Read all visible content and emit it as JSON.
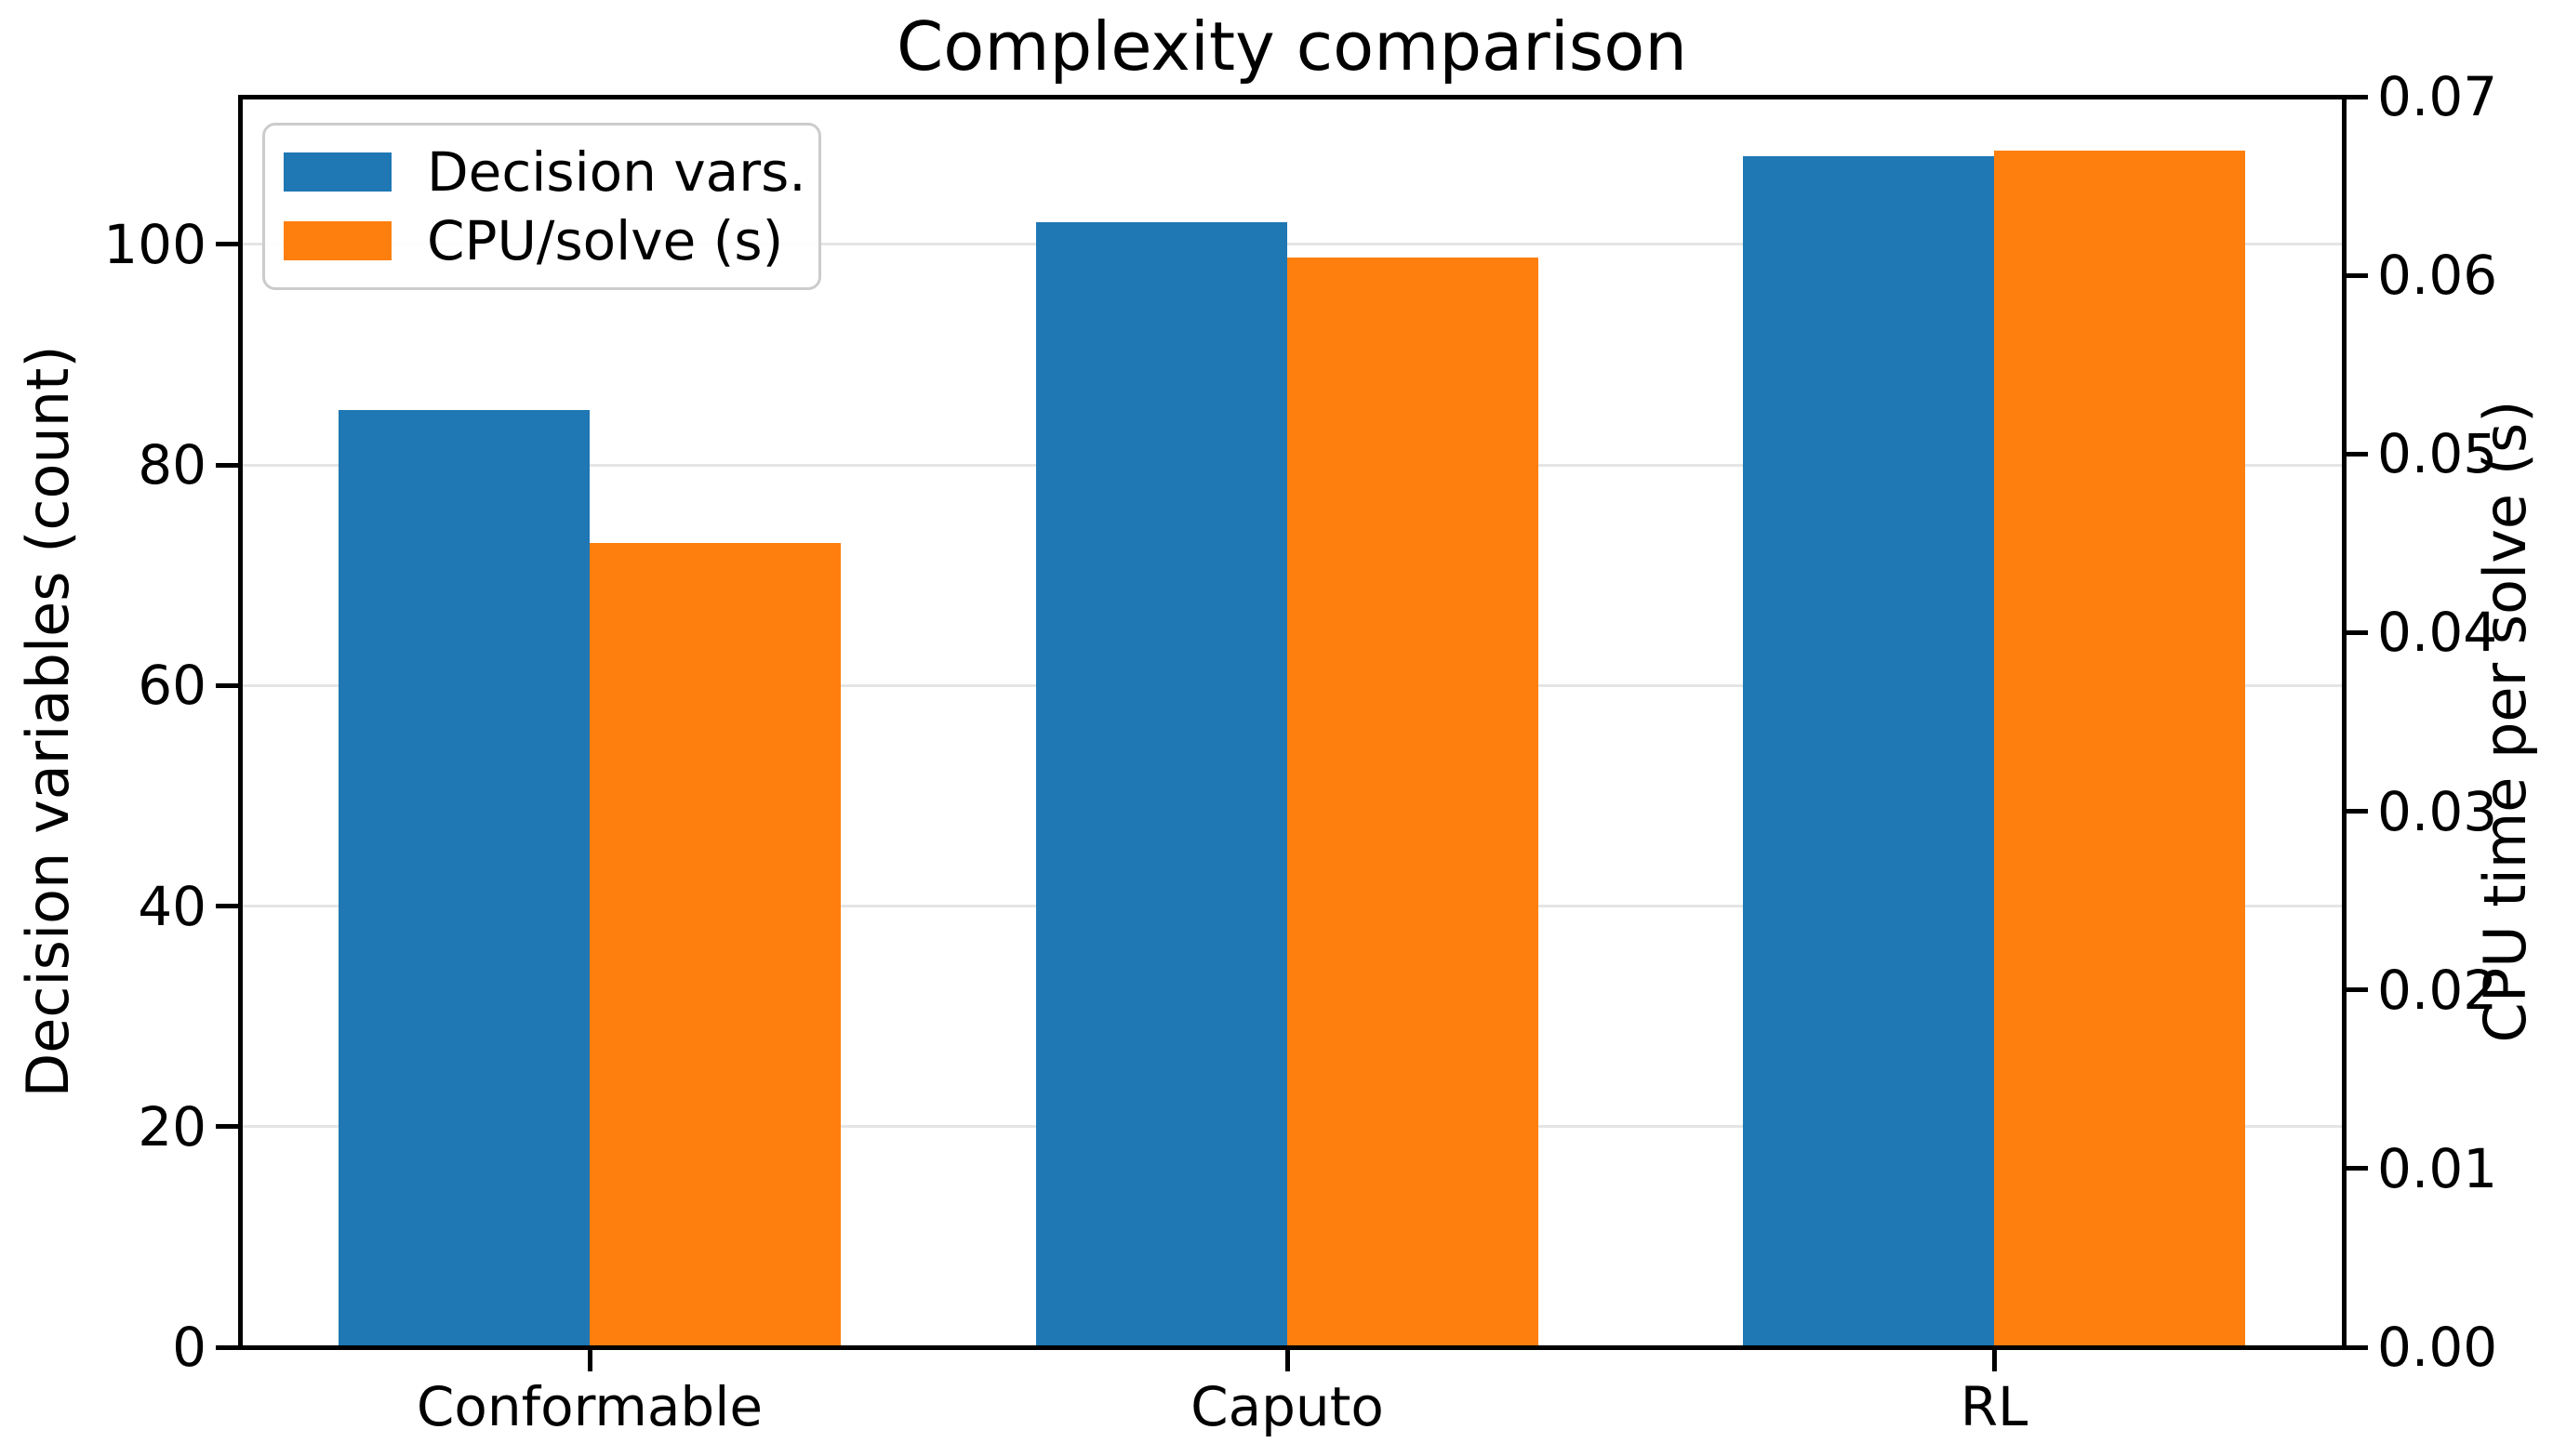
{
  "chart_data": {
    "type": "bar",
    "title": "Complexity comparison",
    "categories": [
      "Conformable",
      "Caputo",
      "RL"
    ],
    "series": [
      {
        "name": "Decision vars.",
        "axis": "left",
        "color": "#1f77b4",
        "values": [
          85,
          102,
          108
        ]
      },
      {
        "name": "CPU/solve (s)",
        "axis": "right",
        "color": "#ff7f0e",
        "values": [
          0.045,
          0.061,
          0.067
        ]
      }
    ],
    "left_axis": {
      "label": "Decision variables (count)",
      "tick_values": [
        0,
        20,
        40,
        60,
        80,
        100
      ],
      "tick_labels": [
        "0",
        "20",
        "40",
        "60",
        "80",
        "100"
      ],
      "range": [
        0,
        113.4
      ],
      "grid_tick_values": [
        20,
        40,
        60,
        80,
        100
      ]
    },
    "right_axis": {
      "label": "CPU time per solve (s)",
      "tick_values": [
        0.0,
        0.01,
        0.02,
        0.03,
        0.04,
        0.05,
        0.06,
        0.07
      ],
      "tick_labels": [
        "0.00",
        "0.01",
        "0.02",
        "0.03",
        "0.04",
        "0.05",
        "0.06",
        "0.07"
      ],
      "range": [
        0,
        0.07
      ]
    },
    "legend": {
      "position": "upper left"
    },
    "grid": true,
    "colors": {
      "background": "#ffffff",
      "text": "#000000",
      "gridline": "#e5e5e5",
      "spine": "#000000",
      "legend_border": "#cccccc"
    }
  }
}
